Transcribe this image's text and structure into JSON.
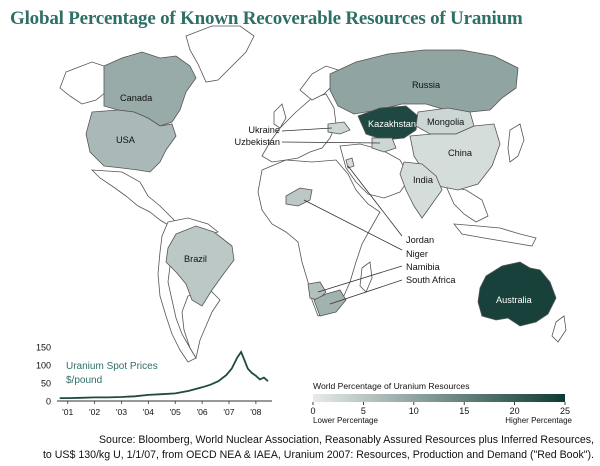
{
  "title": "Global Percentage of Known Recoverable Resources of Uranium",
  "colors": {
    "ocean": "#ffffff",
    "land_base": "#ffffff",
    "border": "#555555",
    "scale_low": "#e6ebea",
    "scale_high": "#0e3a33",
    "title": "#2e6f67"
  },
  "countries": [
    {
      "name": "Canada",
      "label": "Canada",
      "value": 9
    },
    {
      "name": "USA",
      "label": "USA",
      "value": 7
    },
    {
      "name": "Brazil",
      "label": "Brazil",
      "value": 5
    },
    {
      "name": "Russia",
      "label": "Russia",
      "value": 10
    },
    {
      "name": "Kazakhstan",
      "label": "Kazakhstan",
      "value": 23
    },
    {
      "name": "Mongolia",
      "label": "Mongolia",
      "value": 3
    },
    {
      "name": "China",
      "label": "China",
      "value": 2
    },
    {
      "name": "India",
      "label": "India",
      "value": 2
    },
    {
      "name": "Uzbekistan",
      "label": "Uzbekistan",
      "value": 3
    },
    {
      "name": "Ukraine",
      "label": "Ukraine",
      "value": 3
    },
    {
      "name": "Jordan",
      "label": "Jordan",
      "value": 2
    },
    {
      "name": "Niger",
      "label": "Niger",
      "value": 5
    },
    {
      "name": "Namibia",
      "label": "Namibia",
      "value": 6
    },
    {
      "name": "South Africa",
      "label": "South Africa",
      "value": 8
    },
    {
      "name": "Australia",
      "label": "Australia",
      "value": 24
    },
    {
      "name": "Greenland",
      "label": "",
      "value": 0
    }
  ],
  "legend": {
    "title": "World Percentage of Uranium Resources",
    "ticks": [
      "0",
      "5",
      "10",
      "15",
      "20",
      "25"
    ],
    "range": [
      0,
      25
    ],
    "low_label": "Lower Percentage",
    "high_label": "Higher Percentage"
  },
  "chart_data": {
    "type": "line",
    "title": "Uranium Spot Prices",
    "ylabel": "$/pound",
    "xlabel": "",
    "x_ticks": [
      "'01",
      "'02",
      "'03",
      "'04",
      "'05",
      "'06",
      "'07",
      "'08"
    ],
    "y_ticks": [
      "0",
      "50",
      "100",
      "150"
    ],
    "ylim": [
      0,
      150
    ],
    "xlim": [
      2000.6,
      2008.6
    ],
    "series": [
      {
        "x": [
          2000.7,
          2001.0,
          2001.5,
          2002.0,
          2002.5,
          2003.0,
          2003.5,
          2004.0,
          2004.5,
          2005.0,
          2005.5,
          2006.0,
          2006.3,
          2006.6,
          2006.9,
          2007.1,
          2007.3,
          2007.45,
          2007.55,
          2007.7,
          2007.85,
          2008.0,
          2008.15,
          2008.3,
          2008.45
        ],
        "y": [
          8,
          8,
          9,
          10,
          10,
          11,
          13,
          17,
          19,
          21,
          28,
          38,
          45,
          55,
          72,
          90,
          120,
          136,
          118,
          90,
          78,
          70,
          60,
          65,
          55
        ]
      }
    ]
  },
  "source": {
    "line1": "Source: Bloomberg, World Nuclear Association, Reasonably Assured Resources plus Inferred Resources,",
    "line2": "to US$ 130/kg U, 1/1/07, from OECD NEA & IAEA, Uranium 2007: Resources, Production and Demand (\"Red Book\")."
  }
}
